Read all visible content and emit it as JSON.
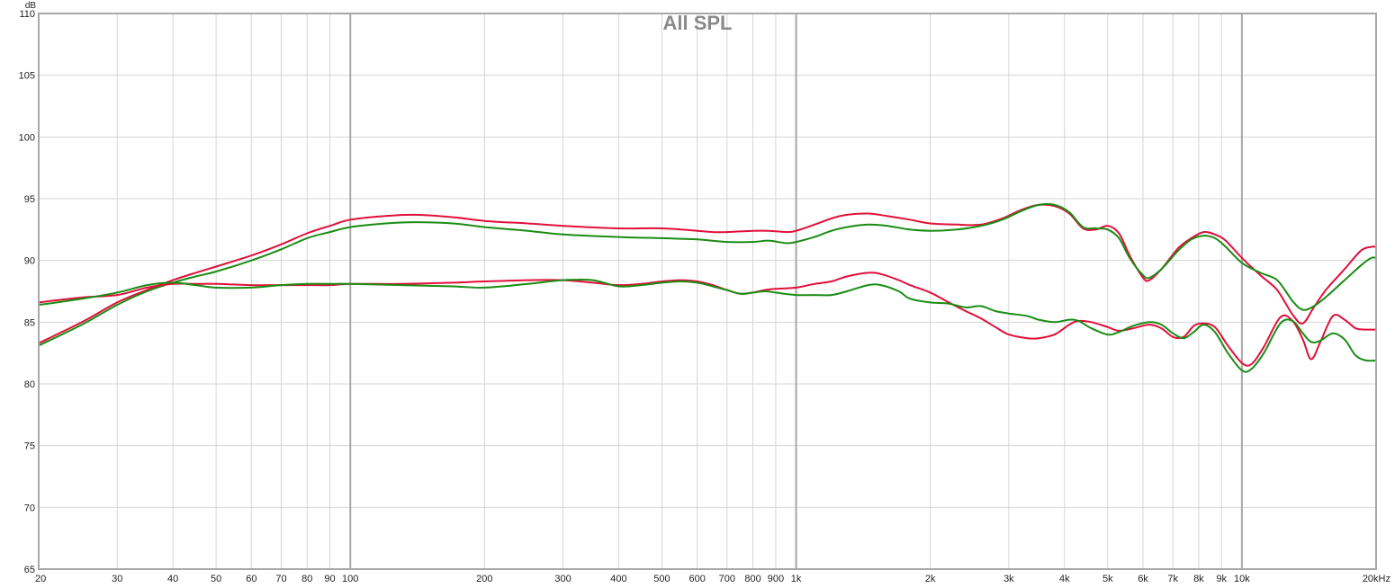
{
  "chart_data": {
    "type": "line",
    "title": "All SPL",
    "y_unit": "dB",
    "x_scale": "log",
    "xlim": [
      20,
      20000
    ],
    "ylim": [
      65,
      110
    ],
    "grid": true,
    "x_ticks": [
      {
        "v": 20,
        "label": "20"
      },
      {
        "v": 30,
        "label": "30"
      },
      {
        "v": 40,
        "label": "40"
      },
      {
        "v": 50,
        "label": "50"
      },
      {
        "v": 60,
        "label": "60"
      },
      {
        "v": 70,
        "label": "70"
      },
      {
        "v": 80,
        "label": "80"
      },
      {
        "v": 90,
        "label": "90"
      },
      {
        "v": 100,
        "label": "100"
      },
      {
        "v": 200,
        "label": "200"
      },
      {
        "v": 300,
        "label": "300"
      },
      {
        "v": 400,
        "label": "400"
      },
      {
        "v": 500,
        "label": "500"
      },
      {
        "v": 600,
        "label": "600"
      },
      {
        "v": 700,
        "label": "700"
      },
      {
        "v": 800,
        "label": "800"
      },
      {
        "v": 900,
        "label": "900"
      },
      {
        "v": 1000,
        "label": "1k"
      },
      {
        "v": 2000,
        "label": "2k"
      },
      {
        "v": 3000,
        "label": "3k"
      },
      {
        "v": 4000,
        "label": "4k"
      },
      {
        "v": 5000,
        "label": "5k"
      },
      {
        "v": 6000,
        "label": "6k"
      },
      {
        "v": 7000,
        "label": "7k"
      },
      {
        "v": 8000,
        "label": "8k"
      },
      {
        "v": 9000,
        "label": "9k"
      },
      {
        "v": 10000,
        "label": "10k"
      },
      {
        "v": 20000,
        "label": "20kHz"
      }
    ],
    "x_major": [
      100,
      1000,
      10000
    ],
    "y_ticks": [
      65,
      70,
      75,
      80,
      85,
      90,
      95,
      100,
      105,
      110
    ],
    "series": [
      {
        "color": "#e0103a",
        "points": [
          [
            20,
            83.3
          ],
          [
            25,
            85.0
          ],
          [
            30,
            86.6
          ],
          [
            35,
            87.6
          ],
          [
            40,
            88.4
          ],
          [
            45,
            89.0
          ],
          [
            50,
            89.5
          ],
          [
            60,
            90.4
          ],
          [
            70,
            91.3
          ],
          [
            80,
            92.2
          ],
          [
            90,
            92.8
          ],
          [
            100,
            93.3
          ],
          [
            120,
            93.6
          ],
          [
            140,
            93.7
          ],
          [
            170,
            93.5
          ],
          [
            200,
            93.2
          ],
          [
            250,
            93.0
          ],
          [
            300,
            92.8
          ],
          [
            400,
            92.6
          ],
          [
            500,
            92.6
          ],
          [
            600,
            92.4
          ],
          [
            650,
            92.3
          ],
          [
            700,
            92.3
          ],
          [
            800,
            92.4
          ],
          [
            870,
            92.4
          ],
          [
            950,
            92.3
          ],
          [
            1000,
            92.4
          ],
          [
            1100,
            92.9
          ],
          [
            1200,
            93.4
          ],
          [
            1300,
            93.7
          ],
          [
            1450,
            93.8
          ],
          [
            1600,
            93.6
          ],
          [
            1800,
            93.3
          ],
          [
            2000,
            93.0
          ],
          [
            2300,
            92.9
          ],
          [
            2600,
            92.9
          ],
          [
            2900,
            93.4
          ],
          [
            3200,
            94.1
          ],
          [
            3500,
            94.5
          ],
          [
            3800,
            94.4
          ],
          [
            4100,
            93.8
          ],
          [
            4400,
            92.6
          ],
          [
            4700,
            92.5
          ],
          [
            5000,
            92.8
          ],
          [
            5300,
            92.2
          ],
          [
            5600,
            90.4
          ],
          [
            6000,
            88.6
          ],
          [
            6200,
            88.4
          ],
          [
            6600,
            89.3
          ],
          [
            7200,
            91.0
          ],
          [
            7700,
            91.8
          ],
          [
            8200,
            92.3
          ],
          [
            8700,
            92.1
          ],
          [
            9200,
            91.6
          ],
          [
            10000,
            90.2
          ],
          [
            11000,
            88.8
          ],
          [
            12000,
            87.6
          ],
          [
            13000,
            85.6
          ],
          [
            13700,
            84.9
          ],
          [
            14500,
            86.2
          ],
          [
            15500,
            87.7
          ],
          [
            17000,
            89.3
          ],
          [
            18500,
            90.8
          ],
          [
            19500,
            91.1
          ],
          [
            20000,
            91.1
          ]
        ]
      },
      {
        "color": "#1a8c14",
        "points": [
          [
            20,
            83.1
          ],
          [
            25,
            84.8
          ],
          [
            30,
            86.4
          ],
          [
            35,
            87.5
          ],
          [
            40,
            88.2
          ],
          [
            45,
            88.7
          ],
          [
            50,
            89.1
          ],
          [
            60,
            90.0
          ],
          [
            70,
            90.9
          ],
          [
            80,
            91.8
          ],
          [
            90,
            92.3
          ],
          [
            100,
            92.7
          ],
          [
            120,
            93.0
          ],
          [
            140,
            93.1
          ],
          [
            170,
            93.0
          ],
          [
            200,
            92.7
          ],
          [
            250,
            92.4
          ],
          [
            300,
            92.1
          ],
          [
            400,
            91.9
          ],
          [
            500,
            91.8
          ],
          [
            600,
            91.7
          ],
          [
            700,
            91.5
          ],
          [
            800,
            91.5
          ],
          [
            870,
            91.6
          ],
          [
            950,
            91.4
          ],
          [
            1000,
            91.5
          ],
          [
            1100,
            91.9
          ],
          [
            1200,
            92.4
          ],
          [
            1300,
            92.7
          ],
          [
            1450,
            92.9
          ],
          [
            1600,
            92.8
          ],
          [
            1800,
            92.5
          ],
          [
            2000,
            92.4
          ],
          [
            2300,
            92.5
          ],
          [
            2600,
            92.8
          ],
          [
            2900,
            93.3
          ],
          [
            3200,
            94.0
          ],
          [
            3500,
            94.5
          ],
          [
            3800,
            94.5
          ],
          [
            4100,
            93.9
          ],
          [
            4400,
            92.7
          ],
          [
            4700,
            92.6
          ],
          [
            5000,
            92.5
          ],
          [
            5300,
            91.8
          ],
          [
            5600,
            90.2
          ],
          [
            6000,
            88.8
          ],
          [
            6200,
            88.6
          ],
          [
            6600,
            89.3
          ],
          [
            7200,
            90.8
          ],
          [
            7700,
            91.7
          ],
          [
            8200,
            92.0
          ],
          [
            8700,
            91.8
          ],
          [
            9200,
            91.1
          ],
          [
            10000,
            89.8
          ],
          [
            11000,
            89.0
          ],
          [
            12000,
            88.4
          ],
          [
            13000,
            86.7
          ],
          [
            13700,
            86.0
          ],
          [
            14500,
            86.3
          ],
          [
            15500,
            87.1
          ],
          [
            17000,
            88.4
          ],
          [
            18500,
            89.6
          ],
          [
            19500,
            90.2
          ],
          [
            20000,
            90.2
          ]
        ]
      },
      {
        "color": "#e0103a",
        "points": [
          [
            20,
            86.6
          ],
          [
            25,
            87.0
          ],
          [
            30,
            87.2
          ],
          [
            35,
            87.8
          ],
          [
            40,
            88.1
          ],
          [
            45,
            88.1
          ],
          [
            50,
            88.1
          ],
          [
            60,
            88.0
          ],
          [
            70,
            88.0
          ],
          [
            80,
            88.0
          ],
          [
            90,
            88.0
          ],
          [
            100,
            88.1
          ],
          [
            130,
            88.1
          ],
          [
            170,
            88.2
          ],
          [
            200,
            88.3
          ],
          [
            250,
            88.4
          ],
          [
            300,
            88.4
          ],
          [
            350,
            88.2
          ],
          [
            400,
            88.0
          ],
          [
            450,
            88.1
          ],
          [
            500,
            88.3
          ],
          [
            550,
            88.4
          ],
          [
            600,
            88.3
          ],
          [
            650,
            88.0
          ],
          [
            700,
            87.6
          ],
          [
            750,
            87.3
          ],
          [
            800,
            87.4
          ],
          [
            850,
            87.6
          ],
          [
            900,
            87.7
          ],
          [
            1000,
            87.8
          ],
          [
            1100,
            88.1
          ],
          [
            1200,
            88.3
          ],
          [
            1300,
            88.7
          ],
          [
            1450,
            89.0
          ],
          [
            1550,
            88.9
          ],
          [
            1700,
            88.4
          ],
          [
            1800,
            88.0
          ],
          [
            2000,
            87.4
          ],
          [
            2200,
            86.6
          ],
          [
            2400,
            85.9
          ],
          [
            2600,
            85.3
          ],
          [
            2800,
            84.6
          ],
          [
            3000,
            84.0
          ],
          [
            3300,
            83.7
          ],
          [
            3500,
            83.7
          ],
          [
            3800,
            84.0
          ],
          [
            4100,
            84.8
          ],
          [
            4300,
            85.1
          ],
          [
            4600,
            85.0
          ],
          [
            5000,
            84.6
          ],
          [
            5300,
            84.3
          ],
          [
            5700,
            84.5
          ],
          [
            6200,
            84.8
          ],
          [
            6600,
            84.5
          ],
          [
            7000,
            83.8
          ],
          [
            7400,
            83.8
          ],
          [
            7800,
            84.7
          ],
          [
            8200,
            84.9
          ],
          [
            8700,
            84.6
          ],
          [
            9300,
            83.1
          ],
          [
            10000,
            81.7
          ],
          [
            10500,
            81.6
          ],
          [
            11200,
            83.0
          ],
          [
            12200,
            85.4
          ],
          [
            13000,
            85.1
          ],
          [
            13700,
            83.6
          ],
          [
            14300,
            82.0
          ],
          [
            15000,
            83.4
          ],
          [
            16000,
            85.5
          ],
          [
            17000,
            85.2
          ],
          [
            18000,
            84.5
          ],
          [
            19000,
            84.4
          ],
          [
            20000,
            84.4
          ]
        ]
      },
      {
        "color": "#1a8c14",
        "points": [
          [
            20,
            86.4
          ],
          [
            25,
            86.9
          ],
          [
            30,
            87.4
          ],
          [
            35,
            88.0
          ],
          [
            40,
            88.2
          ],
          [
            45,
            88.0
          ],
          [
            50,
            87.8
          ],
          [
            60,
            87.8
          ],
          [
            70,
            88.0
          ],
          [
            80,
            88.1
          ],
          [
            90,
            88.1
          ],
          [
            100,
            88.1
          ],
          [
            130,
            88.0
          ],
          [
            170,
            87.9
          ],
          [
            200,
            87.8
          ],
          [
            250,
            88.1
          ],
          [
            300,
            88.4
          ],
          [
            350,
            88.4
          ],
          [
            400,
            87.9
          ],
          [
            450,
            88.0
          ],
          [
            500,
            88.2
          ],
          [
            550,
            88.3
          ],
          [
            600,
            88.2
          ],
          [
            650,
            87.9
          ],
          [
            700,
            87.6
          ],
          [
            750,
            87.3
          ],
          [
            800,
            87.4
          ],
          [
            850,
            87.5
          ],
          [
            900,
            87.4
          ],
          [
            1000,
            87.2
          ],
          [
            1100,
            87.2
          ],
          [
            1200,
            87.2
          ],
          [
            1300,
            87.5
          ],
          [
            1450,
            88.0
          ],
          [
            1550,
            88.0
          ],
          [
            1700,
            87.5
          ],
          [
            1800,
            86.9
          ],
          [
            2000,
            86.6
          ],
          [
            2200,
            86.5
          ],
          [
            2400,
            86.2
          ],
          [
            2600,
            86.3
          ],
          [
            2800,
            85.9
          ],
          [
            3000,
            85.7
          ],
          [
            3300,
            85.5
          ],
          [
            3500,
            85.2
          ],
          [
            3800,
            85.0
          ],
          [
            4100,
            85.2
          ],
          [
            4300,
            85.1
          ],
          [
            4600,
            84.5
          ],
          [
            5000,
            84.0
          ],
          [
            5300,
            84.2
          ],
          [
            5700,
            84.7
          ],
          [
            6200,
            85.0
          ],
          [
            6600,
            84.8
          ],
          [
            7000,
            84.1
          ],
          [
            7400,
            83.7
          ],
          [
            7800,
            84.2
          ],
          [
            8200,
            84.8
          ],
          [
            8700,
            84.2
          ],
          [
            9300,
            82.5
          ],
          [
            10000,
            81.1
          ],
          [
            10500,
            81.2
          ],
          [
            11200,
            82.5
          ],
          [
            12200,
            84.9
          ],
          [
            13000,
            85.1
          ],
          [
            13700,
            84.1
          ],
          [
            14300,
            83.4
          ],
          [
            15000,
            83.5
          ],
          [
            16000,
            84.1
          ],
          [
            17000,
            83.6
          ],
          [
            18000,
            82.3
          ],
          [
            19000,
            81.9
          ],
          [
            20000,
            81.9
          ]
        ]
      }
    ]
  }
}
